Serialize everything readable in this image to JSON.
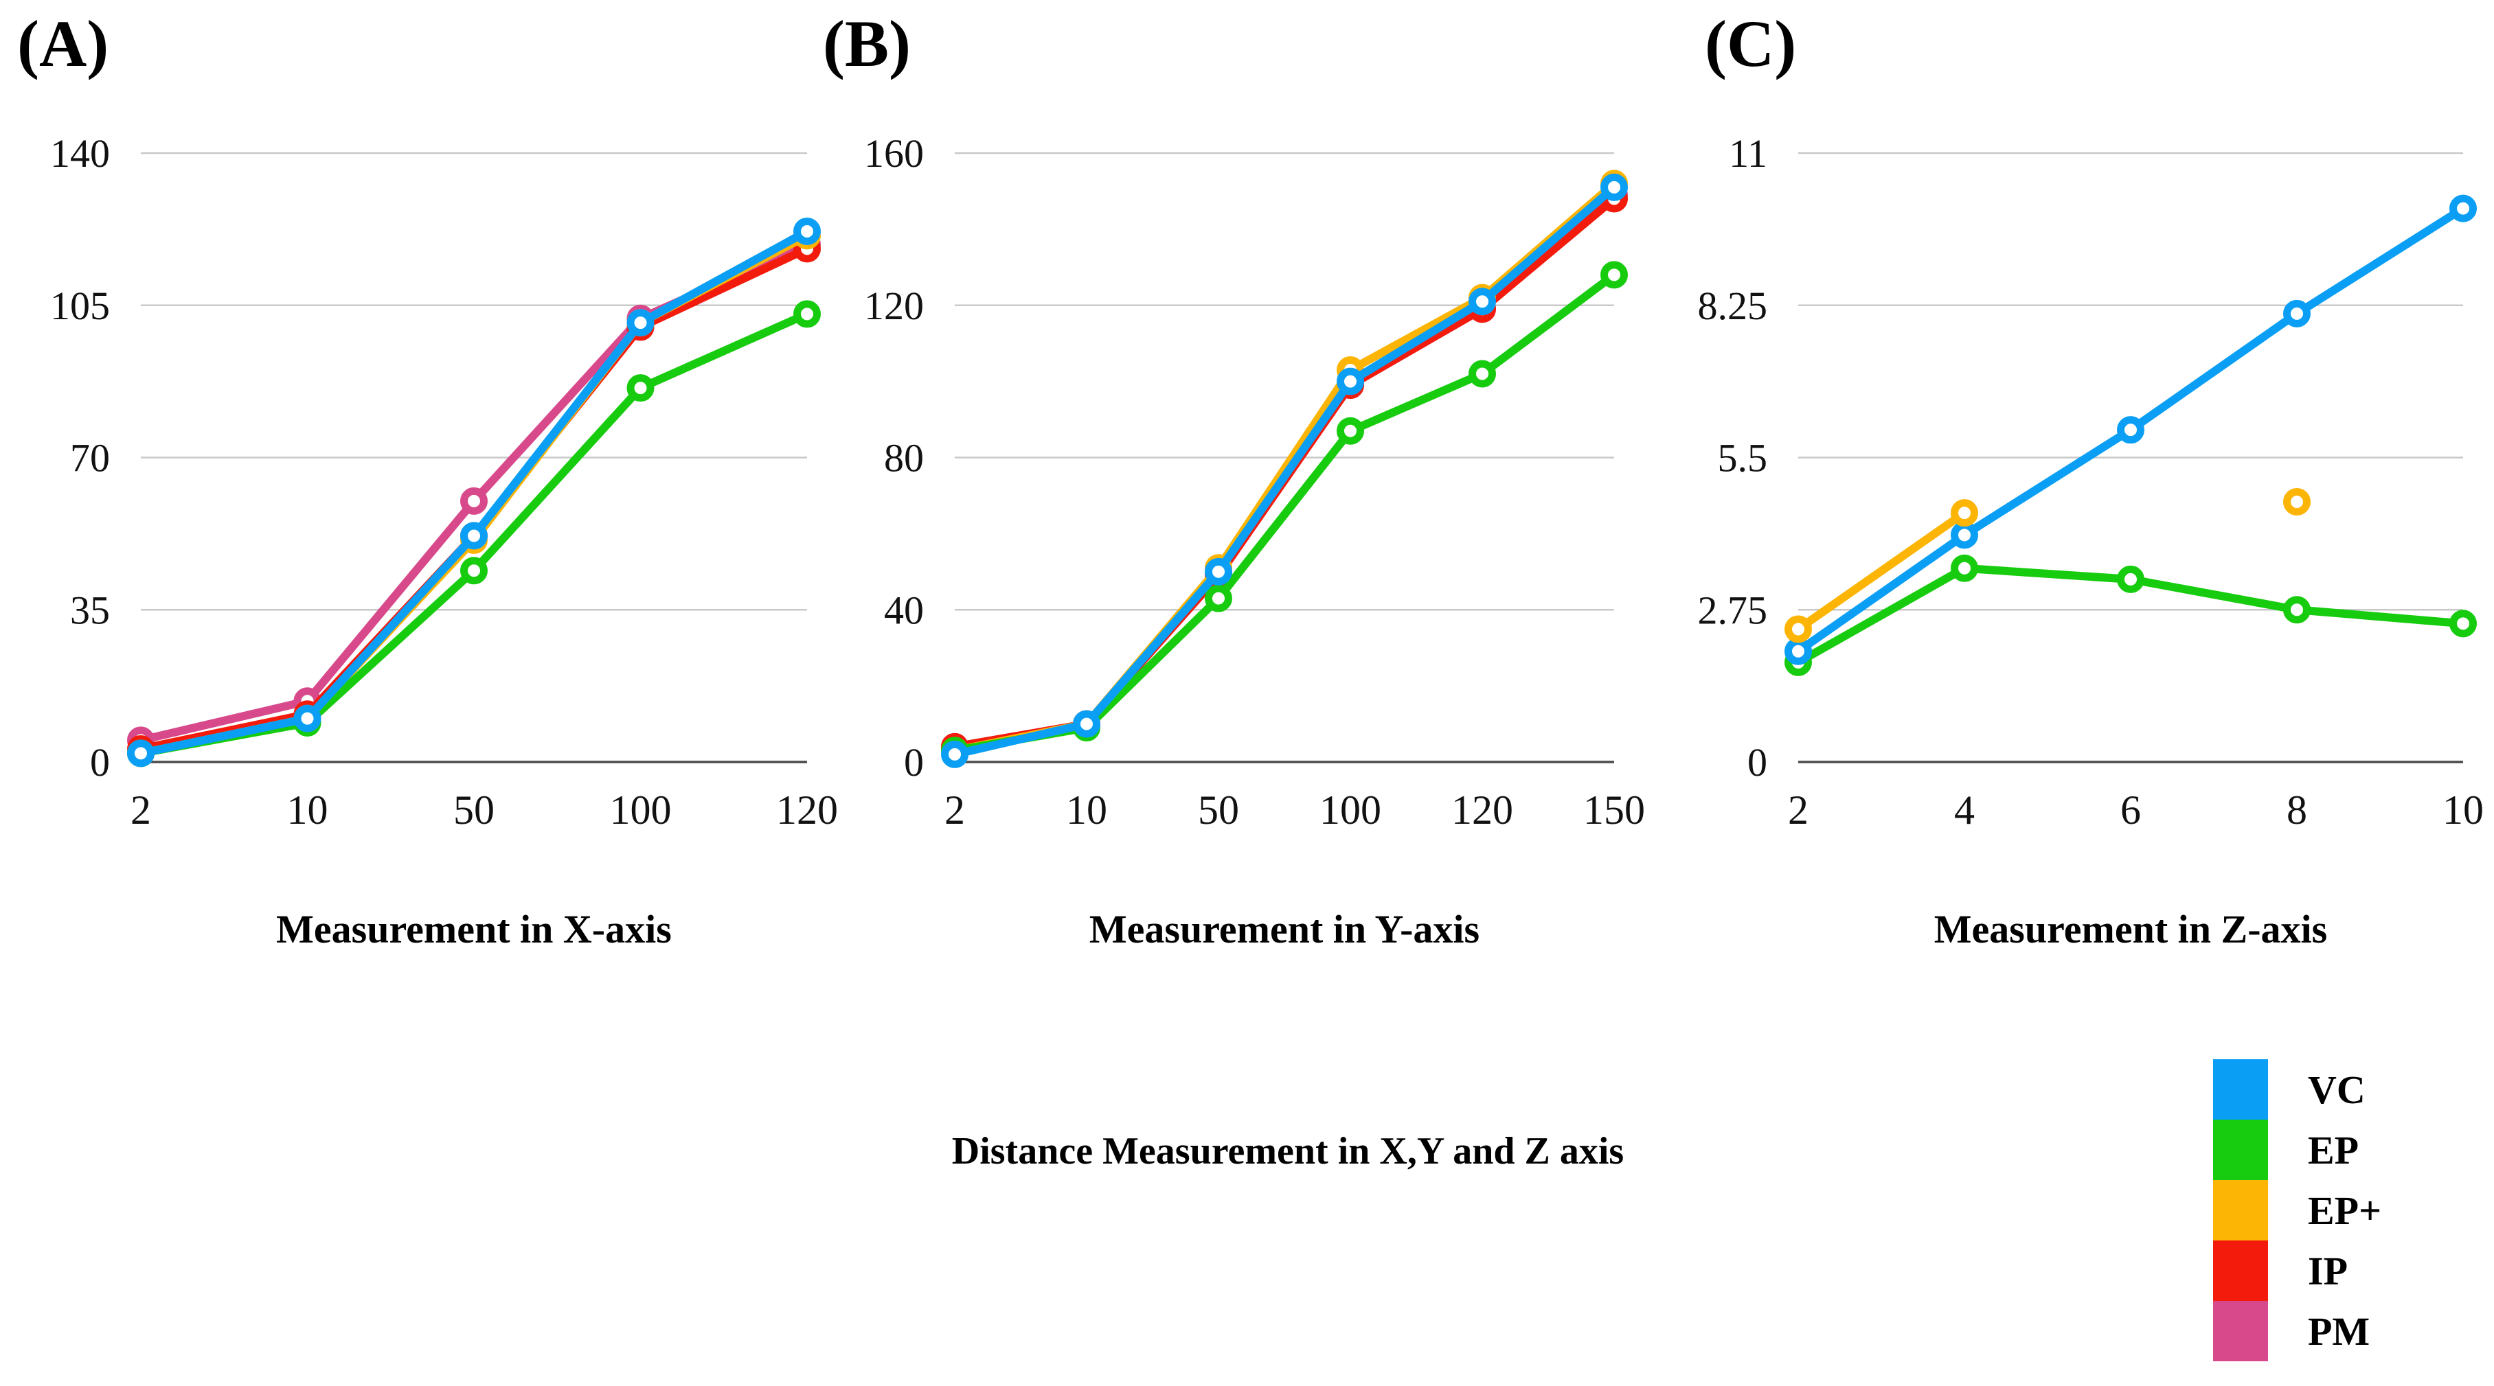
{
  "colors": {
    "VC": "#0A9FF4",
    "EP": "#17CC0F",
    "EP+": "#FCB405",
    "IP": "#F21B0C",
    "PM": "#D8498C"
  },
  "grid_color": "#C9C9C9",
  "axis_color": "#4A4A4A",
  "caption": {
    "text": "Distance Measurement in X,Y and Z axis"
  },
  "legend": {
    "position": "bottom-right",
    "items": [
      {
        "label": "VC",
        "color_key": "VC"
      },
      {
        "label": "EP",
        "color_key": "EP"
      },
      {
        "label": "EP+",
        "color_key": "EP+"
      },
      {
        "label": "IP",
        "color_key": "IP"
      },
      {
        "label": "PM",
        "color_key": "PM"
      }
    ]
  },
  "chart_data": [
    {
      "type": "line",
      "corner_label": "(A)",
      "xlabel": "Measurement in X-axis",
      "ylabel": "",
      "x_categories": [
        "2",
        "10",
        "50",
        "100",
        "120"
      ],
      "ylim": [
        0,
        140
      ],
      "yticks": [
        "140",
        "105",
        "70",
        "35",
        "0"
      ],
      "grid": true,
      "series": [
        {
          "name": "PM",
          "color_key": "PM",
          "values": [
            5,
            14,
            60,
            102,
            119
          ]
        },
        {
          "name": "IP",
          "color_key": "IP",
          "values": [
            3,
            11,
            52,
            100,
            118
          ]
        },
        {
          "name": "EP+",
          "color_key": "EP+",
          "values": [
            2,
            10,
            51,
            101,
            121
          ]
        },
        {
          "name": "EP",
          "color_key": "EP",
          "values": [
            2,
            9,
            44,
            86,
            103
          ]
        },
        {
          "name": "VC",
          "color_key": "VC",
          "values": [
            2,
            10,
            52,
            101,
            122
          ]
        }
      ]
    },
    {
      "type": "line",
      "corner_label": "(B)",
      "xlabel": "Measurement in Y-axis",
      "ylabel": "",
      "x_categories": [
        "2",
        "10",
        "50",
        "100",
        "120",
        "150"
      ],
      "ylim": [
        0,
        160
      ],
      "yticks": [
        "160",
        "120",
        "80",
        "40",
        "0"
      ],
      "grid": true,
      "series": [
        {
          "name": "PM",
          "color_key": "PM",
          "values": [
            4,
            10,
            49,
            99,
            119,
            149
          ]
        },
        {
          "name": "IP",
          "color_key": "IP",
          "values": [
            4,
            10,
            49,
            99,
            119,
            148
          ]
        },
        {
          "name": "EP+",
          "color_key": "EP+",
          "values": [
            3,
            10,
            51,
            103,
            122,
            152
          ]
        },
        {
          "name": "EP",
          "color_key": "EP",
          "values": [
            3,
            9,
            43,
            87,
            102,
            128
          ]
        },
        {
          "name": "VC",
          "color_key": "VC",
          "values": [
            2,
            10,
            50,
            100,
            121,
            151
          ]
        }
      ]
    },
    {
      "type": "line",
      "corner_label": "(C)",
      "xlabel": "Measurement in Z-axis",
      "ylabel": "",
      "x_categories": [
        "2",
        "4",
        "6",
        "8",
        "10"
      ],
      "ylim": [
        0,
        11
      ],
      "yticks": [
        "11",
        "8.25",
        "5.5",
        "2.75",
        "0"
      ],
      "grid": true,
      "series": [
        {
          "name": "EP",
          "color_key": "EP",
          "values": [
            1.8,
            3.5,
            3.3,
            2.75,
            2.5
          ]
        },
        {
          "name": "VC",
          "color_key": "VC",
          "values": [
            2,
            4.1,
            6,
            8.1,
            10
          ]
        },
        {
          "name": "EP+",
          "color_key": "EP+",
          "values": [
            2.4,
            4.5,
            null,
            4.7,
            null
          ]
        }
      ]
    }
  ]
}
